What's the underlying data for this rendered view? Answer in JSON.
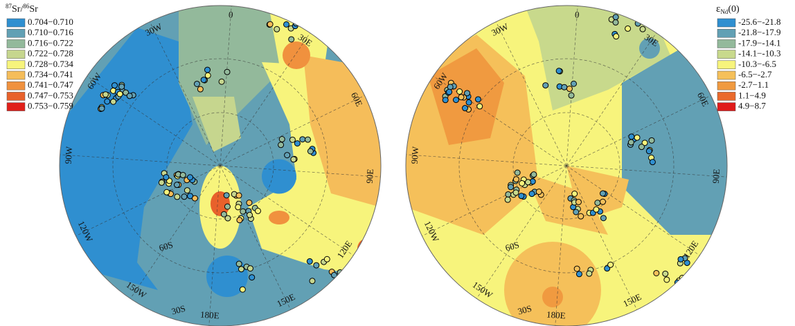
{
  "maps": [
    {
      "legend": {
        "title": {
          "mass1": "87",
          "element1": "Sr",
          "separator": "/",
          "mass2": "86",
          "element2": "Sr"
        },
        "entries": [
          {
            "label": "0.704−0.710",
            "color": "#2f8fd0"
          },
          {
            "label": "0.710−0.716",
            "color": "#62a0b4"
          },
          {
            "label": "0.716−0.722",
            "color": "#93b99b"
          },
          {
            "label": "0.722−0.728",
            "color": "#c6d68e"
          },
          {
            "label": "0.728−0.734",
            "color": "#f7f47c"
          },
          {
            "label": "0.734−0.741",
            "color": "#f5bd5a"
          },
          {
            "label": "0.741−0.747",
            "color": "#f0913e"
          },
          {
            "label": "0.747−0.753",
            "color": "#e8612b"
          },
          {
            "label": "0.753−0.759",
            "color": "#e0201a"
          }
        ]
      },
      "lon_labels": [
        "0",
        "30E",
        "60E",
        "90E",
        "120E",
        "150E",
        "180E",
        "150W",
        "120W",
        "90W",
        "60W",
        "30W"
      ],
      "lat_labels": [
        "60S",
        "30S"
      ]
    },
    {
      "legend": {
        "title": {
          "symbol": "ε",
          "subscript": "Nd",
          "suffix": "(0)"
        },
        "entries": [
          {
            "label": "-25.6−-21.8",
            "color": "#2f8fd0"
          },
          {
            "label": "-21.8−-17.9",
            "color": "#62a0b4"
          },
          {
            "label": "-17.9−-14.1",
            "color": "#93b99b"
          },
          {
            "label": "-14.1−-10.3",
            "color": "#c8d98c"
          },
          {
            "label": "-10.3−-6.5",
            "color": "#f7f47c"
          },
          {
            "label": "-6.5−-2.7",
            "color": "#f5c05a"
          },
          {
            "label": "-2.7−1.1",
            "color": "#f09a40"
          },
          {
            "label": "1.1−4.9",
            "color": "#ea6a2c"
          },
          {
            "label": "4.9−8.7",
            "color": "#e01a1a"
          }
        ]
      },
      "lon_labels": [
        "0",
        "30E",
        "60E",
        "90E",
        "120E",
        "150E",
        "180E",
        "150W",
        "120W",
        "90W",
        "60W",
        "30W"
      ],
      "lat_labels": [
        "60S",
        "30S"
      ]
    }
  ]
}
